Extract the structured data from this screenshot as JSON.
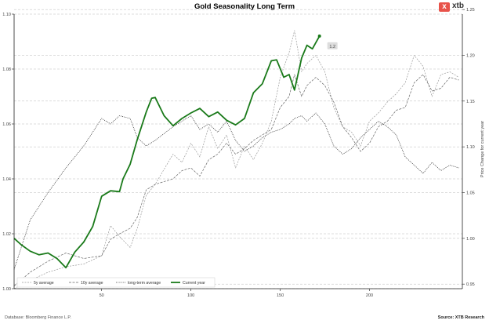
{
  "brand": {
    "name": "xtb",
    "mark": "x",
    "color": "#e8534a",
    "text_color": "#333333"
  },
  "footer": {
    "source_left": "Database: Bloomberg Finance L.P.",
    "source_right": "Source: XTB Research"
  },
  "colors": {
    "current_year": "#1a7a1a",
    "averages": "#555555",
    "grid": "#bbbbbb"
  },
  "chart_data": {
    "type": "line",
    "title": "Gold Seasonality Long Term",
    "xlabel": "",
    "ylabel": "",
    "y2label": "Price Change for current year",
    "xlim": [
      1,
      252
    ],
    "ylim": [
      1.0,
      1.1
    ],
    "y2lim": [
      0.945,
      1.245
    ],
    "x_ticks": [
      50,
      100,
      150,
      200
    ],
    "y_ticks": [
      "1.00",
      "1.02",
      "1.04",
      "1.06",
      "1.08",
      "1.10"
    ],
    "y2_ticks": [
      "0.95",
      "1.00",
      "1.05",
      "1.10",
      "1.15",
      "1.20",
      "1.25"
    ],
    "grid": "horizontal dashed",
    "legend": "bottom-left",
    "annotation": {
      "text": "1.2",
      "x": 172,
      "y2": 1.21
    },
    "series": [
      {
        "name": "5y average",
        "style": "dashed-light",
        "axis": "left",
        "x": [
          1,
          10,
          20,
          30,
          40,
          50,
          55,
          60,
          66,
          70,
          75,
          80,
          90,
          95,
          100,
          105,
          110,
          115,
          120,
          125,
          130,
          135,
          140,
          145,
          150,
          155,
          158,
          162,
          165,
          170,
          175,
          180,
          185,
          190,
          195,
          200,
          205,
          210,
          215,
          220,
          225,
          230,
          235,
          240,
          245,
          250
        ],
        "y": [
          1.0,
          1.003,
          1.006,
          1.008,
          1.009,
          1.012,
          1.023,
          1.019,
          1.015,
          1.022,
          1.034,
          1.038,
          1.049,
          1.046,
          1.053,
          1.048,
          1.059,
          1.051,
          1.056,
          1.044,
          1.052,
          1.047,
          1.053,
          1.061,
          1.077,
          1.086,
          1.094,
          1.079,
          1.082,
          1.085,
          1.079,
          1.066,
          1.059,
          1.057,
          1.052,
          1.061,
          1.064,
          1.068,
          1.071,
          1.075,
          1.085,
          1.081,
          1.07,
          1.078,
          1.079,
          1.077
        ]
      },
      {
        "name": "10y average",
        "style": "dashed",
        "axis": "left",
        "x": [
          1,
          10,
          20,
          30,
          40,
          50,
          55,
          60,
          66,
          70,
          75,
          80,
          90,
          95,
          100,
          105,
          110,
          115,
          120,
          125,
          130,
          135,
          140,
          145,
          150,
          155,
          158,
          162,
          165,
          170,
          175,
          180,
          185,
          190,
          195,
          200,
          205,
          210,
          215,
          220,
          225,
          230,
          235,
          240,
          245,
          250
        ],
        "y": [
          1.001,
          1.006,
          1.01,
          1.013,
          1.011,
          1.012,
          1.018,
          1.02,
          1.022,
          1.026,
          1.036,
          1.038,
          1.04,
          1.043,
          1.044,
          1.041,
          1.047,
          1.049,
          1.053,
          1.049,
          1.051,
          1.054,
          1.056,
          1.058,
          1.066,
          1.07,
          1.078,
          1.07,
          1.074,
          1.077,
          1.074,
          1.068,
          1.059,
          1.055,
          1.05,
          1.053,
          1.059,
          1.061,
          1.065,
          1.066,
          1.075,
          1.078,
          1.072,
          1.073,
          1.077,
          1.076
        ]
      },
      {
        "name": "long-term average",
        "style": "dotted",
        "axis": "left",
        "x": [
          1,
          10,
          20,
          30,
          40,
          50,
          55,
          60,
          66,
          70,
          75,
          80,
          90,
          95,
          100,
          105,
          110,
          115,
          120,
          125,
          130,
          135,
          140,
          145,
          150,
          155,
          158,
          162,
          165,
          170,
          175,
          180,
          185,
          190,
          195,
          200,
          205,
          210,
          215,
          220,
          225,
          230,
          235,
          240,
          245,
          250
        ],
        "y": [
          1.007,
          1.025,
          1.035,
          1.044,
          1.052,
          1.062,
          1.06,
          1.063,
          1.062,
          1.055,
          1.052,
          1.054,
          1.059,
          1.061,
          1.063,
          1.058,
          1.06,
          1.057,
          1.061,
          1.054,
          1.05,
          1.052,
          1.055,
          1.057,
          1.058,
          1.06,
          1.062,
          1.063,
          1.061,
          1.064,
          1.06,
          1.052,
          1.049,
          1.051,
          1.055,
          1.058,
          1.061,
          1.059,
          1.056,
          1.048,
          1.045,
          1.042,
          1.046,
          1.043,
          1.045,
          1.044
        ]
      },
      {
        "name": "Current year",
        "style": "solid-thick",
        "axis": "right",
        "x": [
          1,
          5,
          10,
          15,
          20,
          25,
          30,
          35,
          40,
          45,
          50,
          55,
          60,
          62,
          66,
          70,
          75,
          78,
          80,
          85,
          90,
          95,
          100,
          105,
          110,
          115,
          120,
          125,
          130,
          135,
          140,
          145,
          148,
          152,
          155,
          158,
          162,
          165,
          168,
          170,
          172
        ],
        "y": [
          1.0,
          0.993,
          0.986,
          0.982,
          0.984,
          0.978,
          0.968,
          0.985,
          0.996,
          1.013,
          1.046,
          1.052,
          1.051,
          1.065,
          1.081,
          1.108,
          1.138,
          1.153,
          1.154,
          1.134,
          1.123,
          1.131,
          1.137,
          1.142,
          1.133,
          1.138,
          1.129,
          1.124,
          1.131,
          1.159,
          1.169,
          1.194,
          1.195,
          1.176,
          1.179,
          1.162,
          1.197,
          1.211,
          1.207,
          1.214,
          1.221
        ]
      }
    ]
  }
}
